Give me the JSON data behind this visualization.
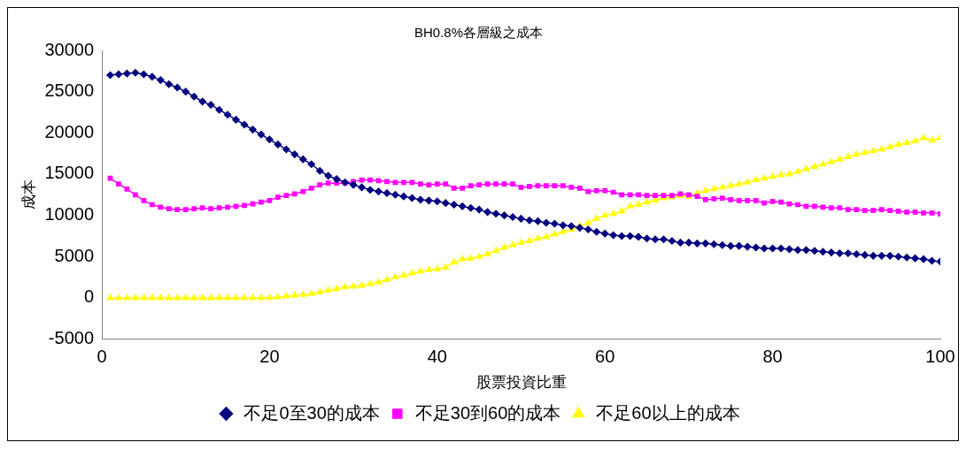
{
  "chart_data": {
    "type": "line",
    "title": "BH0.8%各層級之成本",
    "xlabel": "股票投資比重",
    "ylabel": "成本",
    "x": [
      1,
      2,
      3,
      4,
      5,
      6,
      7,
      8,
      9,
      10,
      11,
      12,
      13,
      14,
      15,
      16,
      17,
      18,
      19,
      20,
      21,
      22,
      23,
      24,
      25,
      26,
      27,
      28,
      29,
      30,
      31,
      32,
      33,
      34,
      35,
      36,
      37,
      38,
      39,
      40,
      41,
      42,
      43,
      44,
      45,
      46,
      47,
      48,
      49,
      50,
      51,
      52,
      53,
      54,
      55,
      56,
      57,
      58,
      59,
      60,
      61,
      62,
      63,
      64,
      65,
      66,
      67,
      68,
      69,
      70,
      71,
      72,
      73,
      74,
      75,
      76,
      77,
      78,
      79,
      80,
      81,
      82,
      83,
      84,
      85,
      86,
      87,
      88,
      89,
      90,
      91,
      92,
      93,
      94,
      95,
      96,
      97,
      98,
      99,
      100
    ],
    "xlim": [
      0,
      100
    ],
    "xticks": [
      0,
      20,
      40,
      60,
      80,
      100
    ],
    "ylim": [
      -5000,
      30000
    ],
    "yticks": [
      -5000,
      0,
      5000,
      10000,
      15000,
      20000,
      25000,
      30000
    ],
    "legend": "bottom",
    "grid": false,
    "series": [
      {
        "name": "不足0至30的成本",
        "color": "#000080",
        "marker": "diamond",
        "values": [
          27000,
          27100,
          27200,
          27300,
          27100,
          26800,
          26400,
          25900,
          25500,
          25000,
          24400,
          23800,
          23400,
          22800,
          22200,
          21600,
          21000,
          20400,
          19800,
          19200,
          18600,
          18000,
          17400,
          16800,
          16200,
          15400,
          14800,
          14400,
          14000,
          13700,
          13400,
          13100,
          12900,
          12700,
          12500,
          12300,
          12100,
          11900,
          11800,
          11700,
          11500,
          11300,
          11100,
          10900,
          10700,
          10400,
          10200,
          10000,
          9800,
          9600,
          9400,
          9300,
          9100,
          9000,
          8800,
          8700,
          8500,
          8300,
          8000,
          7800,
          7600,
          7500,
          7500,
          7400,
          7200,
          7100,
          7100,
          6900,
          6700,
          6700,
          6600,
          6600,
          6500,
          6400,
          6300,
          6300,
          6200,
          6100,
          6000,
          6000,
          6000,
          5900,
          5800,
          5800,
          5700,
          5600,
          5500,
          5400,
          5400,
          5300,
          5200,
          5100,
          5100,
          5100,
          5000,
          4900,
          4800,
          4700,
          4500,
          4400
        ]
      },
      {
        "name": "不足30到60的成本",
        "color": "#ff00ff",
        "marker": "square",
        "values": [
          14500,
          13800,
          13200,
          12500,
          11800,
          11300,
          11000,
          10800,
          10700,
          10700,
          10800,
          10900,
          10800,
          10900,
          11000,
          11100,
          11200,
          11400,
          11600,
          11800,
          12200,
          12400,
          12600,
          12900,
          13300,
          13700,
          13900,
          13900,
          13900,
          14100,
          14300,
          14300,
          14200,
          14100,
          14000,
          14000,
          14000,
          13800,
          13700,
          13800,
          13800,
          13300,
          13300,
          13600,
          13700,
          13800,
          13800,
          13800,
          13800,
          13400,
          13500,
          13600,
          13600,
          13600,
          13600,
          13400,
          13300,
          12900,
          13000,
          13000,
          12800,
          12500,
          12500,
          12500,
          12400,
          12400,
          12400,
          12400,
          12600,
          12500,
          12300,
          11900,
          12000,
          12100,
          11900,
          11800,
          11800,
          11800,
          11500,
          11700,
          11600,
          11400,
          11300,
          11100,
          11100,
          11000,
          10900,
          10900,
          10700,
          10700,
          10600,
          10600,
          10700,
          10600,
          10500,
          10400,
          10400,
          10300,
          10300,
          10200
        ]
      },
      {
        "name": "不足60以上的成本",
        "color": "#ffff00",
        "marker": "triangle",
        "values": [
          0,
          0,
          0,
          0,
          0,
          0,
          0,
          0,
          0,
          0,
          0,
          0,
          0,
          0,
          0,
          0,
          0,
          0,
          0,
          0,
          100,
          200,
          300,
          400,
          500,
          700,
          900,
          1100,
          1300,
          1400,
          1500,
          1700,
          1900,
          2200,
          2500,
          2700,
          3000,
          3200,
          3400,
          3500,
          3700,
          4300,
          4700,
          4800,
          5000,
          5300,
          5700,
          6100,
          6400,
          6700,
          6900,
          7200,
          7400,
          7700,
          8000,
          8300,
          8700,
          9100,
          9600,
          10000,
          10200,
          10500,
          11100,
          11300,
          11600,
          11800,
          12100,
          12200,
          12400,
          12300,
          12700,
          13000,
          13200,
          13400,
          13600,
          13800,
          14000,
          14300,
          14500,
          14700,
          14900,
          15000,
          15300,
          15600,
          15900,
          16200,
          16500,
          16800,
          17100,
          17400,
          17600,
          17800,
          18000,
          18300,
          18600,
          18800,
          19000,
          19400,
          19100,
          19400
        ]
      }
    ]
  }
}
